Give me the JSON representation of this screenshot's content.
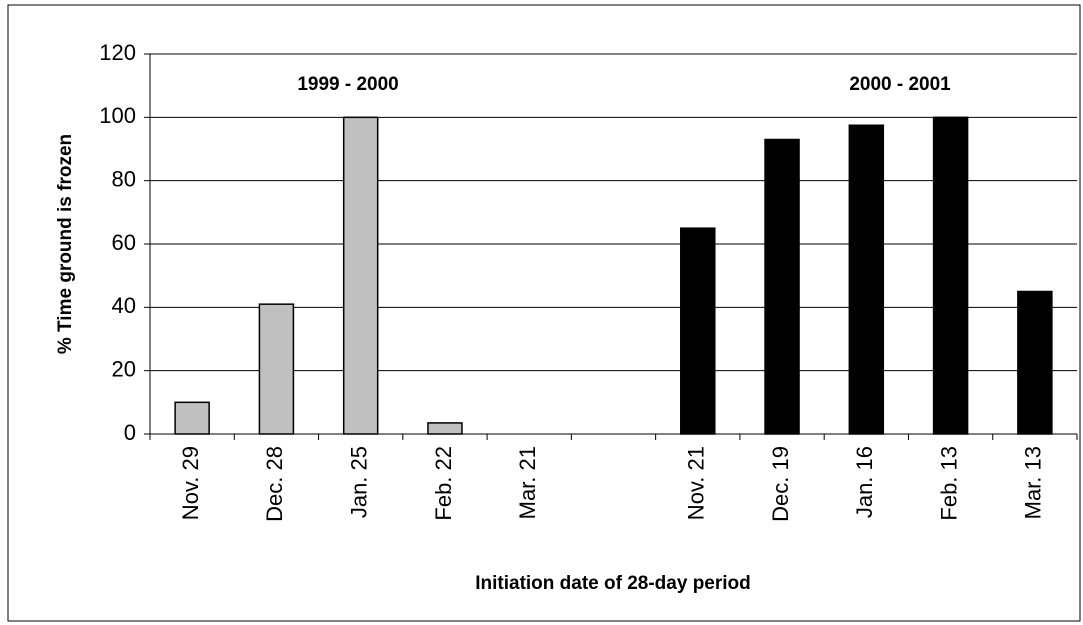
{
  "chart_data": {
    "type": "bar",
    "y_label": "% Time ground is frozen",
    "x_label": "Initiation date of 28-day period",
    "categories": [
      "Nov. 29",
      "Dec. 28",
      "Jan. 25",
      "Feb. 22",
      "Mar. 21",
      null,
      "Nov. 21",
      "Dec. 19",
      "Jan. 16",
      "Feb. 13",
      "Mar. 13"
    ],
    "series": [
      {
        "name": "1999 - 2000",
        "color": "#c0c0c0",
        "values": [
          10,
          41,
          100,
          3.5,
          0,
          null,
          null,
          null,
          null,
          null,
          null
        ]
      },
      {
        "name": "2000 - 2001",
        "color": "#000000",
        "values": [
          null,
          null,
          null,
          null,
          null,
          null,
          65,
          93,
          97.5,
          100,
          45
        ]
      }
    ],
    "ylim": [
      0,
      120
    ],
    "yticks": [
      0,
      20,
      40,
      60,
      80,
      100,
      120
    ],
    "grid": true
  }
}
